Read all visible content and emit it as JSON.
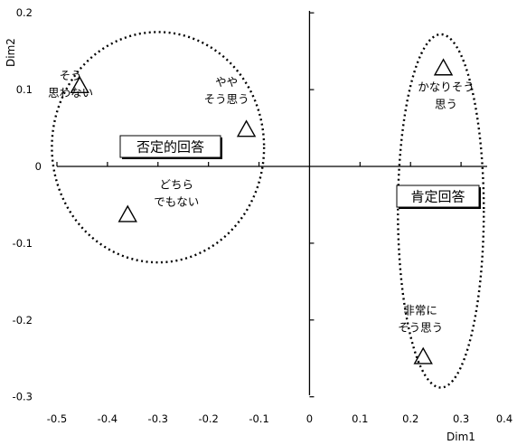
{
  "chart_data": {
    "type": "scatter",
    "xlabel": "Dim1",
    "ylabel": "Dim2",
    "xlim": [
      -0.5,
      0.4
    ],
    "ylim": [
      -0.3,
      0.2
    ],
    "x_ticks": [
      "-0.5",
      "-0.4",
      "-0.3",
      "-0.2",
      "-0.1",
      "0",
      "0.1",
      "0.2",
      "0.3",
      "0.4"
    ],
    "y_ticks": [
      "0.2",
      "0.1",
      "0",
      "-0.1",
      "-0.2",
      "-0.3"
    ],
    "marker": "open-triangle",
    "points": [
      {
        "id": "sou-omowanai",
        "x": -0.455,
        "y": 0.105,
        "label": [
          "そう",
          "思わない"
        ]
      },
      {
        "id": "dochiradem",
        "x": -0.36,
        "y": -0.063,
        "label": [
          "どちら",
          "でもない"
        ]
      },
      {
        "id": "yaya-sou-omou",
        "x": -0.125,
        "y": 0.048,
        "label": [
          "やや",
          "そう思う"
        ]
      },
      {
        "id": "kanari-sou-omou",
        "x": 0.265,
        "y": 0.128,
        "label": [
          "かなりそう",
          "思う"
        ]
      },
      {
        "id": "hijouni-sou-omou",
        "x": 0.225,
        "y": -0.248,
        "label": [
          "非常に",
          "そう思う"
        ]
      }
    ],
    "groups": [
      {
        "id": "negative",
        "label": "否定的回答",
        "shape": "ellipse",
        "center": [
          -0.3,
          0.025
        ],
        "radii": [
          0.21,
          0.15
        ]
      },
      {
        "id": "positive",
        "label": "肯定回答",
        "shape": "ellipse",
        "center": [
          0.26,
          -0.058
        ],
        "radii": [
          0.085,
          0.23
        ]
      }
    ]
  }
}
